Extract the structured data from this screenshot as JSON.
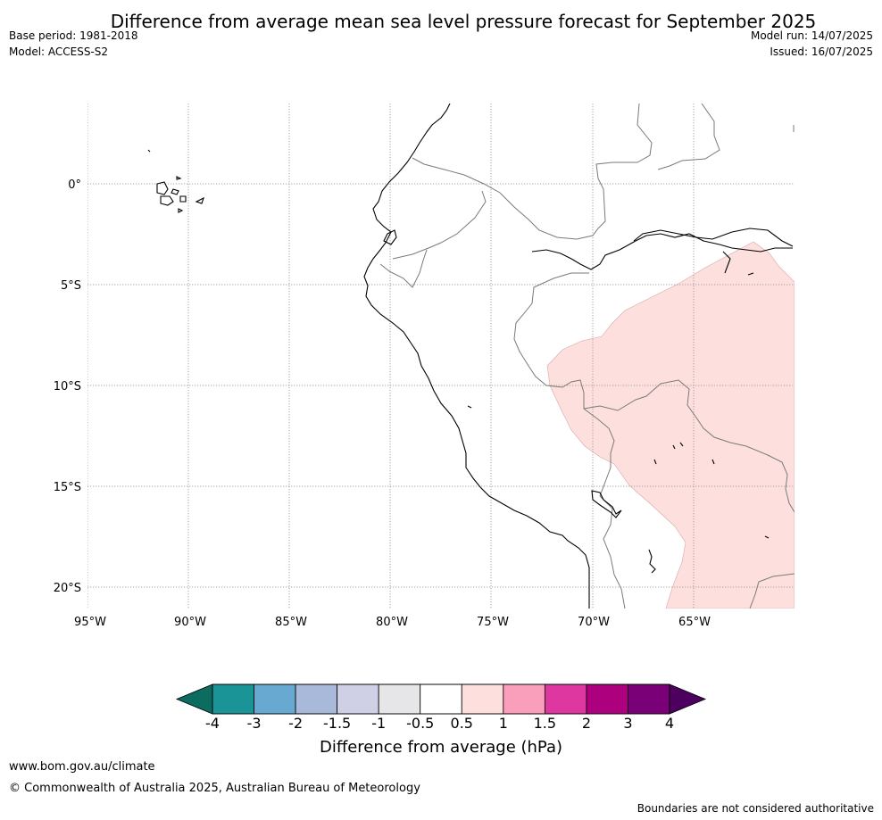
{
  "title": "Difference from average mean sea level pressure forecast for September 2025",
  "meta_left": {
    "base_period": "Base period: 1981-2018",
    "model": "Model: ACCESS-S2"
  },
  "meta_right": {
    "model_run": "Model run: 14/07/2025",
    "issued": "Issued: 16/07/2025"
  },
  "map": {
    "lon_range": [
      -95,
      -60
    ],
    "lat_range": [
      -21,
      4
    ],
    "lon_ticks": [
      "95°W",
      "90°W",
      "85°W",
      "80°W",
      "75°W",
      "70°W",
      "65°W"
    ],
    "lat_ticks": [
      "0°",
      "5°S",
      "10°S",
      "15°S",
      "20°S"
    ],
    "grid": "dotted",
    "anomaly_region": {
      "category": "0.5 to 1",
      "color": "#fde0de"
    }
  },
  "colorbar": {
    "title": "Difference from average (hPa)",
    "labels": [
      "-4",
      "-3",
      "-2",
      "-1.5",
      "-1",
      "-0.5",
      "0.5",
      "1",
      "1.5",
      "2",
      "3",
      "4"
    ],
    "colors": [
      "#1a9497",
      "#67a9d1",
      "#a9b9d9",
      "#cfd0e6",
      "#e6e6e8",
      "#ffffff",
      "#fde0de",
      "#f99fbb",
      "#de37a0",
      "#ad007e",
      "#7a0078"
    ],
    "extend_low_color": "#0c6c60",
    "extend_high_color": "#4d0060"
  },
  "footer": {
    "url": "www.bom.gov.au/climate",
    "copyright": "© Commonwealth of Australia 2025, Australian Bureau of Meteorology",
    "disclaimer": "Boundaries are not considered authoritative"
  }
}
